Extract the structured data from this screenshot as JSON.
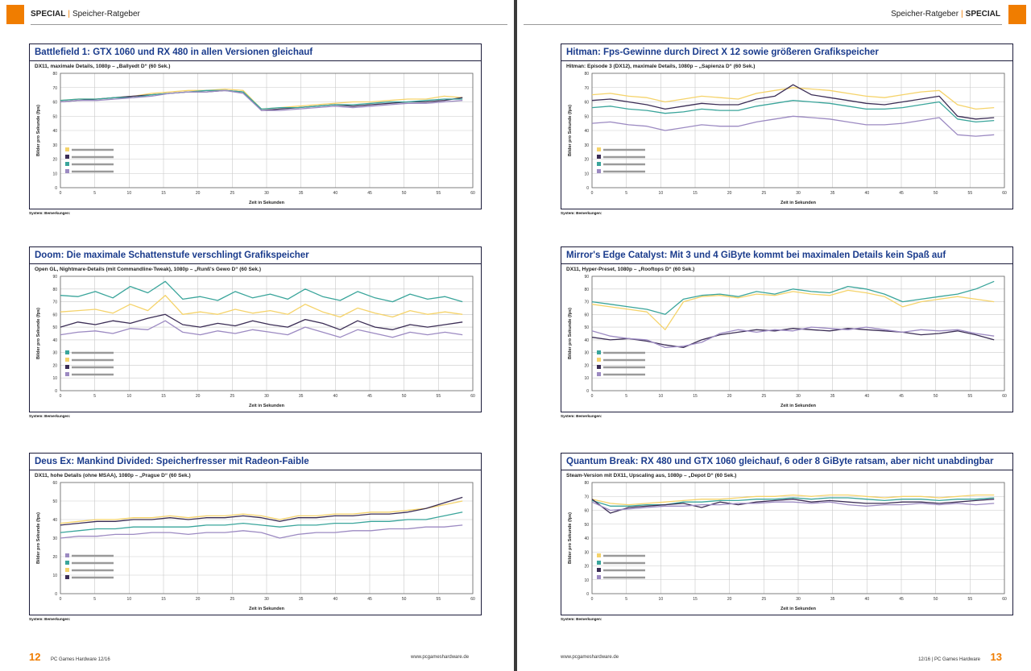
{
  "left_page": {
    "header": {
      "section": "SPECIAL",
      "topic": "Speicher-Ratgeber"
    },
    "footer": {
      "page_number": "12",
      "magazine": "PC Games Hardware 12/16",
      "url": "www.pcgameshardware.de"
    }
  },
  "right_page": {
    "header": {
      "section": "SPECIAL",
      "topic": "Speicher-Ratgeber"
    },
    "footer": {
      "page_number": "13",
      "magazine": "12/16 | PC Games Hardware",
      "url": "www.pcgameshardware.de"
    }
  },
  "charts": [
    {
      "title": "Battlefield 1: GTX 1060 und RX 480 in allen Versionen gleichauf",
      "subtitle": "DX11, maximale Details, 1080p – „Ballyedt D“ (60 Sek.)",
      "ylabel": "Bilder pro Sekunde (fps)",
      "xlabel": "Zeit in Sekunden",
      "notes_label": "System:",
      "notes_label2": "Bemerkungen:"
    },
    {
      "title": "Doom: Die maximale Schattenstufe verschlingt Grafikspeicher",
      "subtitle": "Open GL, Nightmare-Details (mit Commandline-Tweak), 1080p – „Runß's Gewo D“ (60 Sek.)",
      "ylabel": "Bilder pro Sekunde (fps)",
      "xlabel": "Zeit in Sekunden",
      "notes_label": "System:",
      "notes_label2": "Bemerkungen:"
    },
    {
      "title": "Deus Ex: Mankind Divided: Speicherfresser mit Radeon-Faible",
      "subtitle": "DX11, hohe Details (ohne MSAA), 1080p – „Prague D“ (60 Sek.)",
      "ylabel": "Bilder pro Sekunde (fps)",
      "xlabel": "Zeit in Sekunden",
      "notes_label": "System:",
      "notes_label2": "Bemerkungen:"
    },
    {
      "title": "Hitman: Fps-Gewinne durch Direct X 12 sowie größeren Grafikspeicher",
      "subtitle": "Hitman: Episode 3 (DX12), maximale Details, 1080p – „Sapienza D“ (60 Sek.)",
      "ylabel": "Bilder pro Sekunde (fps)",
      "xlabel": "Zeit in Sekunden",
      "notes_label": "System:",
      "notes_label2": "Bemerkungen:"
    },
    {
      "title": "Mirror's Edge Catalyst: Mit 3 und 4 GiByte kommt bei maximalen Details kein Spaß auf",
      "subtitle": "DX11, Hyper-Preset, 1080p – „Rooftops D“ (60 Sek.)",
      "ylabel": "Bilder pro Sekunde (fps)",
      "xlabel": "Zeit in Sekunden",
      "notes_label": "System:",
      "notes_label2": "Bemerkungen:"
    },
    {
      "title": "Quantum Break: RX 480 und GTX 1060 gleichauf, 6 oder 8 GiByte ratsam, aber nicht unabdingbar",
      "subtitle": "Steam-Version mit DX11, Upscaling aus, 1080p – „Depot D“ (60 Sek.)",
      "ylabel": "Bilder pro Sekunde (fps)",
      "xlabel": "Zeit in Sekunden",
      "notes_label": "System:",
      "notes_label2": "Bemerkungen:"
    }
  ],
  "chart_data": [
    {
      "type": "line",
      "x_ticks": [
        "0",
        "5",
        "10",
        "15",
        "20",
        "25",
        "30",
        "35",
        "40",
        "45",
        "50",
        "55",
        "60"
      ],
      "y_ticks": [
        "0",
        "10",
        "20",
        "30",
        "40",
        "50",
        "60",
        "70",
        "80"
      ],
      "xlim": [
        0,
        60
      ],
      "ylim": [
        0,
        80
      ],
      "series": [
        {
          "color": "#f5d36a",
          "values": [
            61,
            62,
            62,
            63,
            64,
            66,
            67,
            68,
            68,
            69,
            68,
            55,
            56,
            57,
            58,
            59,
            60,
            60,
            61,
            62,
            62,
            64,
            63
          ]
        },
        {
          "color": "#3b2d55",
          "values": [
            60,
            61,
            62,
            63,
            64,
            65,
            66,
            67,
            67,
            68,
            67,
            54,
            55,
            56,
            57,
            58,
            57,
            58,
            59,
            60,
            60,
            61,
            63
          ]
        },
        {
          "color": "#3aa59b",
          "values": [
            61,
            62,
            62,
            63,
            63,
            65,
            66,
            67,
            68,
            68,
            67,
            55,
            56,
            56,
            57,
            58,
            58,
            59,
            60,
            60,
            61,
            62,
            62
          ]
        },
        {
          "color": "#9c8ac2",
          "values": [
            60,
            61,
            61,
            62,
            63,
            64,
            66,
            67,
            67,
            68,
            66,
            54,
            54,
            55,
            56,
            57,
            56,
            57,
            58,
            59,
            59,
            60,
            61
          ]
        }
      ]
    },
    {
      "type": "line",
      "x_ticks": [
        "0",
        "5",
        "10",
        "15",
        "20",
        "25",
        "30",
        "35",
        "40",
        "45",
        "50",
        "55",
        "60"
      ],
      "y_ticks": [
        "0",
        "10",
        "20",
        "30",
        "40",
        "50",
        "60",
        "70",
        "80",
        "90"
      ],
      "xlim": [
        0,
        60
      ],
      "ylim": [
        0,
        90
      ],
      "series": [
        {
          "color": "#3aa59b",
          "values": [
            75,
            74,
            78,
            73,
            82,
            77,
            86,
            72,
            74,
            71,
            78,
            73,
            76,
            72,
            80,
            74,
            71,
            78,
            73,
            70,
            76,
            72,
            74,
            70
          ]
        },
        {
          "color": "#f5d36a",
          "values": [
            62,
            63,
            64,
            61,
            68,
            63,
            75,
            60,
            62,
            60,
            64,
            61,
            63,
            60,
            68,
            62,
            58,
            65,
            61,
            58,
            63,
            60,
            62,
            60
          ]
        },
        {
          "color": "#3b2d55",
          "values": [
            50,
            54,
            52,
            55,
            53,
            57,
            60,
            52,
            50,
            53,
            51,
            55,
            52,
            50,
            56,
            53,
            48,
            55,
            50,
            48,
            52,
            50,
            52,
            54
          ]
        },
        {
          "color": "#9c8ac2",
          "values": [
            44,
            46,
            47,
            45,
            49,
            48,
            55,
            46,
            44,
            47,
            45,
            48,
            46,
            44,
            50,
            46,
            42,
            48,
            45,
            42,
            46,
            44,
            46,
            44
          ]
        }
      ]
    },
    {
      "type": "line",
      "x_ticks": [
        "0",
        "5",
        "10",
        "15",
        "20",
        "25",
        "30",
        "35",
        "40",
        "45",
        "50",
        "55",
        "60"
      ],
      "y_ticks": [
        "0",
        "10",
        "20",
        "30",
        "40",
        "50",
        "60"
      ],
      "xlim": [
        0,
        60
      ],
      "ylim": [
        0,
        60
      ],
      "series": [
        {
          "color": "#9c8ac2",
          "values": [
            30,
            31,
            31,
            32,
            32,
            33,
            33,
            32,
            33,
            33,
            34,
            33,
            30,
            32,
            33,
            33,
            34,
            34,
            35,
            35,
            36,
            36,
            37
          ]
        },
        {
          "color": "#3aa59b",
          "values": [
            33,
            34,
            35,
            35,
            36,
            36,
            36,
            36,
            37,
            37,
            38,
            37,
            36,
            37,
            37,
            38,
            38,
            39,
            39,
            40,
            40,
            42,
            44
          ]
        },
        {
          "color": "#f5d36a",
          "values": [
            38,
            39,
            40,
            40,
            41,
            41,
            42,
            41,
            42,
            42,
            43,
            42,
            40,
            42,
            42,
            43,
            43,
            44,
            44,
            45,
            46,
            48,
            50
          ]
        },
        {
          "color": "#3b2d55",
          "values": [
            37,
            38,
            39,
            39,
            40,
            40,
            41,
            40,
            41,
            41,
            42,
            41,
            39,
            41,
            41,
            42,
            42,
            43,
            43,
            44,
            46,
            49,
            52
          ]
        }
      ]
    },
    {
      "type": "line",
      "x_ticks": [
        "0",
        "5",
        "10",
        "15",
        "20",
        "25",
        "30",
        "35",
        "40",
        "45",
        "50",
        "55",
        "60"
      ],
      "y_ticks": [
        "0",
        "10",
        "20",
        "30",
        "40",
        "50",
        "60",
        "70",
        "80"
      ],
      "xlim": [
        0,
        60
      ],
      "ylim": [
        0,
        80
      ],
      "series": [
        {
          "color": "#f5d36a",
          "values": [
            65,
            66,
            64,
            63,
            60,
            62,
            64,
            63,
            62,
            66,
            68,
            70,
            69,
            68,
            66,
            64,
            63,
            65,
            67,
            68,
            58,
            55,
            56
          ]
        },
        {
          "color": "#3b2d55",
          "values": [
            61,
            62,
            60,
            58,
            55,
            57,
            59,
            58,
            58,
            62,
            64,
            72,
            65,
            63,
            61,
            59,
            58,
            60,
            62,
            64,
            50,
            48,
            49
          ]
        },
        {
          "color": "#3aa59b",
          "values": [
            56,
            57,
            55,
            54,
            52,
            53,
            55,
            54,
            54,
            57,
            59,
            61,
            60,
            59,
            57,
            55,
            55,
            56,
            58,
            60,
            48,
            46,
            47
          ]
        },
        {
          "color": "#9c8ac2",
          "values": [
            45,
            46,
            44,
            43,
            40,
            42,
            44,
            43,
            43,
            46,
            48,
            50,
            49,
            48,
            46,
            44,
            44,
            45,
            47,
            49,
            37,
            36,
            37
          ]
        }
      ]
    },
    {
      "type": "line",
      "x_ticks": [
        "0",
        "5",
        "10",
        "15",
        "20",
        "25",
        "30",
        "35",
        "40",
        "45",
        "50",
        "55",
        "60"
      ],
      "y_ticks": [
        "0",
        "10",
        "20",
        "30",
        "40",
        "50",
        "60",
        "70",
        "80",
        "90"
      ],
      "xlim": [
        0,
        60
      ],
      "ylim": [
        0,
        90
      ],
      "series": [
        {
          "color": "#3aa59b",
          "values": [
            70,
            68,
            66,
            64,
            60,
            72,
            75,
            76,
            74,
            78,
            76,
            80,
            78,
            77,
            82,
            80,
            76,
            70,
            72,
            74,
            76,
            80,
            86
          ]
        },
        {
          "color": "#f5d36a",
          "values": [
            68,
            66,
            64,
            62,
            48,
            70,
            74,
            75,
            73,
            76,
            75,
            78,
            76,
            75,
            79,
            77,
            74,
            66,
            70,
            72,
            74,
            72,
            70
          ]
        },
        {
          "color": "#3b2d55",
          "values": [
            42,
            40,
            41,
            39,
            36,
            34,
            40,
            44,
            46,
            48,
            47,
            49,
            48,
            47,
            49,
            48,
            47,
            46,
            44,
            45,
            47,
            44,
            40
          ]
        },
        {
          "color": "#9c8ac2",
          "values": [
            47,
            43,
            41,
            40,
            34,
            35,
            38,
            45,
            48,
            46,
            48,
            47,
            50,
            49,
            48,
            50,
            48,
            46,
            48,
            47,
            48,
            45,
            43
          ]
        }
      ]
    },
    {
      "type": "line",
      "x_ticks": [
        "0",
        "5",
        "10",
        "15",
        "20",
        "25",
        "30",
        "35",
        "40",
        "45",
        "50",
        "55",
        "60"
      ],
      "y_ticks": [
        "0",
        "10",
        "20",
        "30",
        "40",
        "50",
        "60",
        "70",
        "80"
      ],
      "xlim": [
        0,
        60
      ],
      "ylim": [
        0,
        80
      ],
      "series": [
        {
          "color": "#f5d36a",
          "values": [
            68,
            65,
            64,
            65,
            66,
            67,
            68,
            68,
            69,
            70,
            70,
            71,
            70,
            71,
            71,
            70,
            69,
            70,
            70,
            69,
            70,
            71,
            71
          ]
        },
        {
          "color": "#3aa59b",
          "values": [
            67,
            63,
            63,
            64,
            64,
            66,
            66,
            67,
            67,
            68,
            68,
            69,
            68,
            69,
            69,
            68,
            67,
            68,
            68,
            67,
            68,
            68,
            69
          ]
        },
        {
          "color": "#3b2d55",
          "values": [
            68,
            58,
            62,
            63,
            64,
            65,
            62,
            66,
            64,
            66,
            67,
            68,
            66,
            67,
            66,
            65,
            65,
            66,
            66,
            65,
            66,
            67,
            68
          ]
        },
        {
          "color": "#9c8ac2",
          "values": [
            66,
            60,
            61,
            62,
            63,
            63,
            64,
            64,
            65,
            65,
            66,
            66,
            65,
            66,
            64,
            63,
            64,
            64,
            65,
            64,
            65,
            64,
            65
          ]
        }
      ]
    }
  ]
}
